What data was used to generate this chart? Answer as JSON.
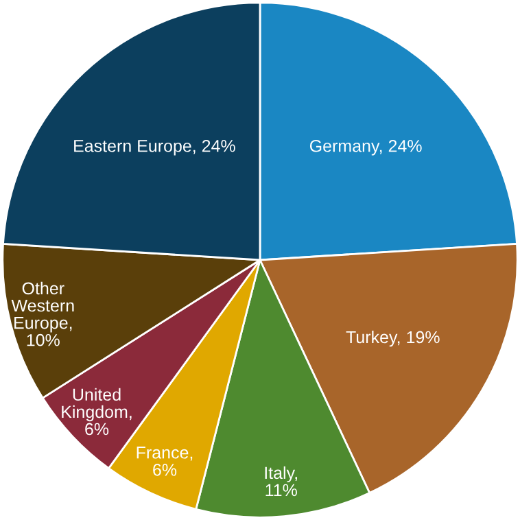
{
  "chart_data": {
    "type": "pie",
    "categories": [
      "Germany",
      "Turkey",
      "Italy",
      "France",
      "United Kingdom",
      "Other Western Europe",
      "Eastern Europe"
    ],
    "values": [
      24,
      19,
      11,
      6,
      6,
      10,
      24
    ],
    "colors": [
      "#1a87c3",
      "#a8652a",
      "#4e8a2f",
      "#e0a800",
      "#8b2a3a",
      "#5a3f0a",
      "#0c3f5e"
    ],
    "value_labels": [
      ", 24%",
      ", 19%",
      ", 11%",
      ", 6%",
      ", 6%",
      ", 10%",
      ", 24%"
    ]
  }
}
